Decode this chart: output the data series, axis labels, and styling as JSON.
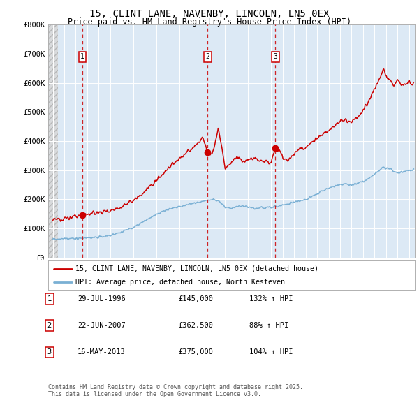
{
  "title": "15, CLINT LANE, NAVENBY, LINCOLN, LN5 0EX",
  "subtitle": "Price paid vs. HM Land Registry's House Price Index (HPI)",
  "title_fontsize": 10,
  "subtitle_fontsize": 8.5,
  "background_color": "#ffffff",
  "plot_bg_color": "#dce9f5",
  "ylim": [
    0,
    800000
  ],
  "xlim_start": 1993.6,
  "xlim_end": 2025.5,
  "yticks": [
    0,
    100000,
    200000,
    300000,
    400000,
    500000,
    600000,
    700000,
    800000
  ],
  "ytick_labels": [
    "£0",
    "£100K",
    "£200K",
    "£300K",
    "£400K",
    "£500K",
    "£600K",
    "£700K",
    "£800K"
  ],
  "xticks": [
    1994,
    1995,
    1996,
    1997,
    1998,
    1999,
    2000,
    2001,
    2002,
    2003,
    2004,
    2005,
    2006,
    2007,
    2008,
    2009,
    2010,
    2011,
    2012,
    2013,
    2014,
    2015,
    2016,
    2017,
    2018,
    2019,
    2020,
    2021,
    2022,
    2023,
    2024,
    2025
  ],
  "red_line_color": "#cc0000",
  "blue_line_color": "#7ab0d4",
  "sale_dates": [
    1996.57,
    2007.47,
    2013.37
  ],
  "sale_prices": [
    145000,
    362500,
    375000
  ],
  "sale_labels": [
    "1",
    "2",
    "3"
  ],
  "legend_label_red": "15, CLINT LANE, NAVENBY, LINCOLN, LN5 0EX (detached house)",
  "legend_label_blue": "HPI: Average price, detached house, North Kesteven",
  "table_rows": [
    {
      "num": "1",
      "date": "29-JUL-1996",
      "price": "£145,000",
      "hpi": "132% ↑ HPI"
    },
    {
      "num": "2",
      "date": "22-JUN-2007",
      "price": "£362,500",
      "hpi": "88% ↑ HPI"
    },
    {
      "num": "3",
      "date": "16-MAY-2013",
      "price": "£375,000",
      "hpi": "104% ↑ HPI"
    }
  ],
  "footer_text": "Contains HM Land Registry data © Crown copyright and database right 2025.\nThis data is licensed under the Open Government Licence v3.0."
}
